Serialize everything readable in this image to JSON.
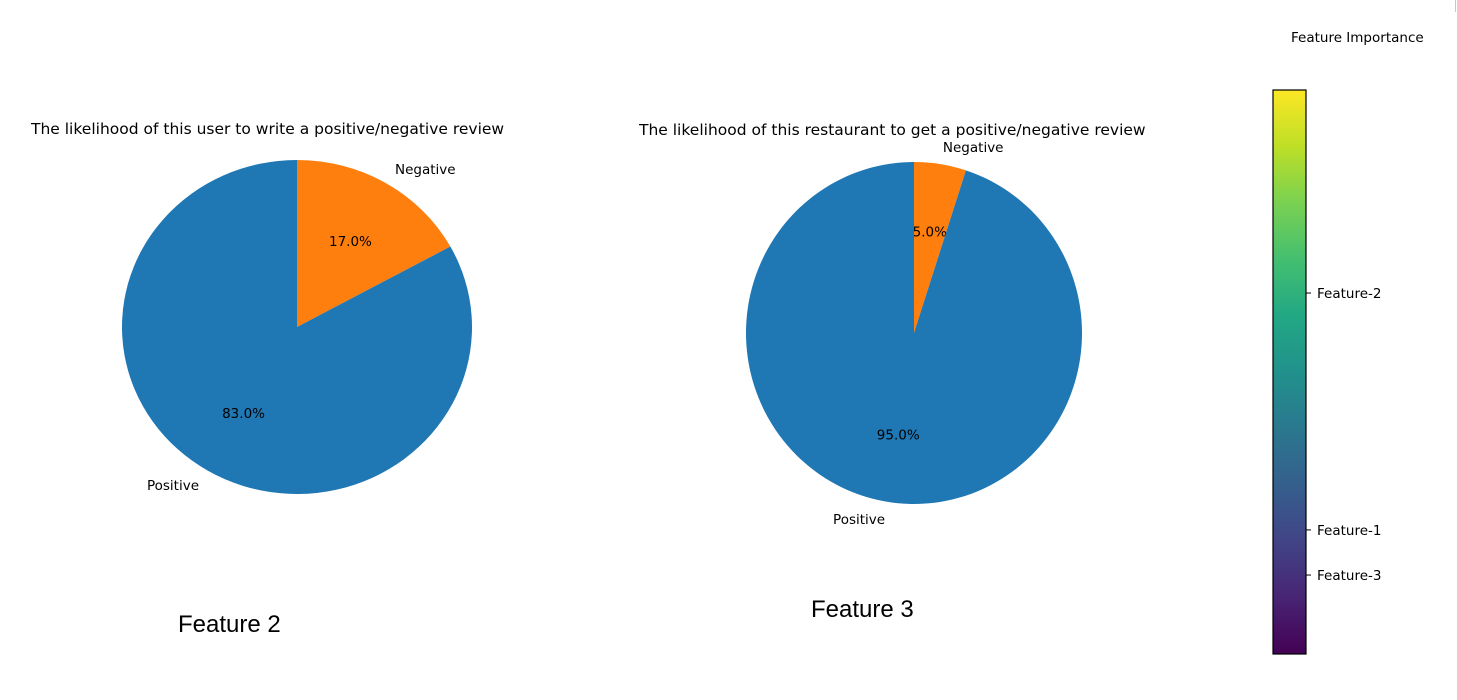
{
  "chart_data": [
    {
      "type": "pie",
      "title": "The likelihood of this user to write a positive/negative review",
      "caption": "Feature 2",
      "slices": [
        {
          "label": "Negative",
          "value": 17.0,
          "pct_label": "17.0%",
          "color": "#ff7f0e"
        },
        {
          "label": "Positive",
          "value": 83.0,
          "pct_label": "83.0%",
          "color": "#1f77b4"
        }
      ],
      "start_angle": 90,
      "direction": "clockwise"
    },
    {
      "type": "pie",
      "title": "The likelihood of this restaurant to get a positive/negative review",
      "caption": "Feature 3",
      "slices": [
        {
          "label": "Negative",
          "value": 5.0,
          "pct_label": "5.0%",
          "color": "#ff7f0e"
        },
        {
          "label": "Positive",
          "value": 95.0,
          "pct_label": "95.0%",
          "color": "#1f77b4"
        }
      ],
      "start_angle": 90,
      "direction": "clockwise"
    },
    {
      "type": "colorbar",
      "title": "Feature Importance",
      "colormap": "viridis",
      "range": [
        0,
        1
      ],
      "ticks": [
        {
          "label": "Feature-2",
          "value": 0.64
        },
        {
          "label": "Feature-1",
          "value": 0.22
        },
        {
          "label": "Feature-3",
          "value": 0.14
        }
      ]
    }
  ]
}
